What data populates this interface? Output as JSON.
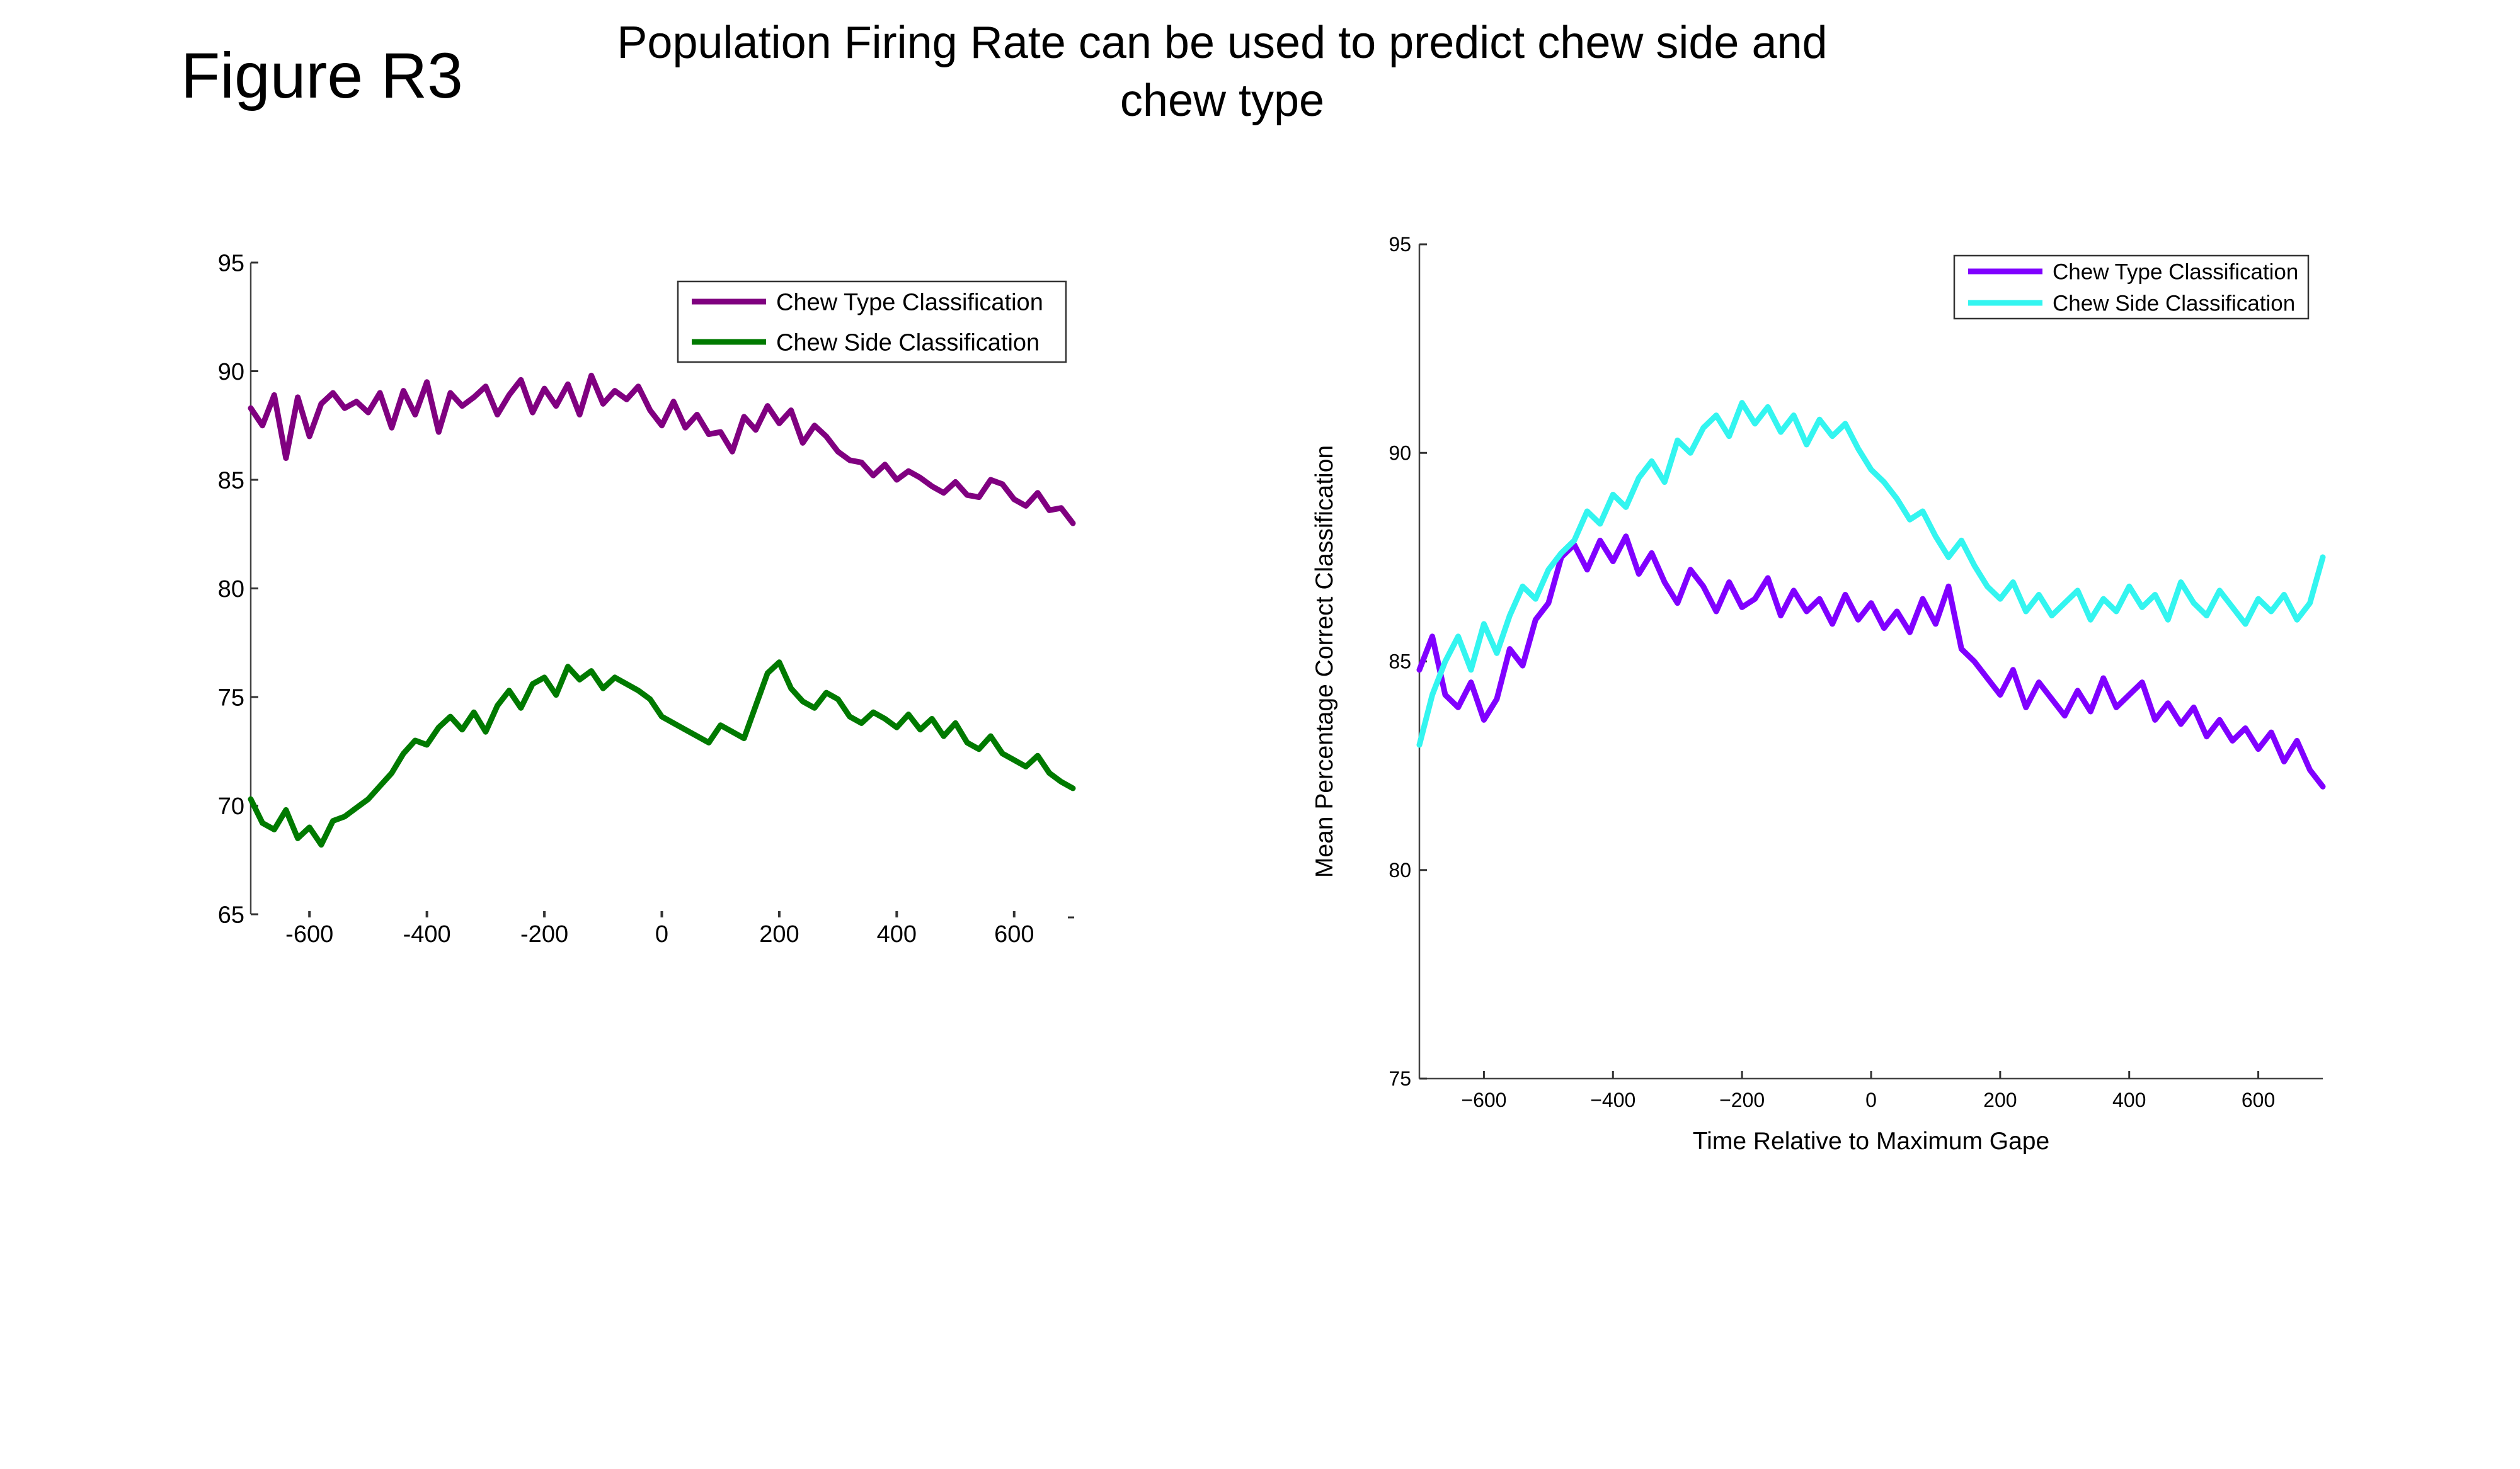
{
  "figure": {
    "label": "Figure R3",
    "title": "Population Firing Rate can be used to predict chew side and chew type"
  },
  "chart_data": [
    {
      "type": "line",
      "title": "",
      "xlabel": "",
      "ylabel": "",
      "xlim": [
        -700,
        700
      ],
      "ylim": [
        65,
        95
      ],
      "xticks": [
        -600,
        -400,
        -200,
        0,
        200,
        400,
        600
      ],
      "yticks": [
        65,
        70,
        75,
        80,
        85,
        90,
        95
      ],
      "legend_position": "top-right",
      "grid": false,
      "series": [
        {
          "name": "Chew Type Classification",
          "color": "#800080",
          "x": [
            -700,
            -680,
            -660,
            -640,
            -620,
            -600,
            -580,
            -560,
            -540,
            -520,
            -500,
            -480,
            -460,
            -440,
            -420,
            -400,
            -380,
            -360,
            -340,
            -320,
            -300,
            -280,
            -260,
            -240,
            -220,
            -200,
            -180,
            -160,
            -140,
            -120,
            -100,
            -80,
            -60,
            -40,
            -20,
            0,
            20,
            40,
            60,
            80,
            100,
            120,
            140,
            160,
            180,
            200,
            220,
            240,
            260,
            280,
            300,
            320,
            340,
            360,
            380,
            400,
            420,
            440,
            460,
            480,
            500,
            520,
            540,
            560,
            580,
            600,
            620,
            640,
            660,
            680,
            700
          ],
          "y": [
            88.3,
            87.5,
            88.9,
            86.0,
            88.8,
            87.0,
            88.5,
            89.0,
            88.3,
            88.6,
            88.1,
            89.0,
            87.4,
            89.1,
            88.0,
            89.5,
            87.2,
            89.0,
            88.4,
            88.8,
            89.3,
            88.0,
            88.9,
            89.6,
            88.1,
            89.2,
            88.4,
            89.4,
            88.0,
            89.8,
            88.5,
            89.1,
            88.7,
            89.3,
            88.2,
            87.5,
            88.6,
            87.4,
            88.0,
            87.1,
            87.2,
            86.3,
            87.9,
            87.3,
            88.4,
            87.6,
            88.2,
            86.7,
            87.5,
            87.0,
            86.3,
            85.9,
            85.8,
            85.2,
            85.7,
            85.0,
            85.4,
            85.1,
            84.7,
            84.4,
            84.9,
            84.3,
            84.2,
            85.0,
            84.8,
            84.1,
            83.8,
            84.4,
            83.6,
            83.7,
            83.0
          ]
        },
        {
          "name": "Chew Side Classification",
          "color": "#007a00",
          "x": [
            -700,
            -680,
            -660,
            -640,
            -620,
            -600,
            -580,
            -560,
            -540,
            -520,
            -500,
            -480,
            -460,
            -440,
            -420,
            -400,
            -380,
            -360,
            -340,
            -320,
            -300,
            -280,
            -260,
            -240,
            -220,
            -200,
            -180,
            -160,
            -140,
            -120,
            -100,
            -80,
            -60,
            -40,
            -20,
            0,
            20,
            40,
            60,
            80,
            100,
            120,
            140,
            160,
            180,
            200,
            220,
            240,
            260,
            280,
            300,
            320,
            340,
            360,
            380,
            400,
            420,
            440,
            460,
            480,
            500,
            520,
            540,
            560,
            580,
            600,
            620,
            640,
            660,
            680,
            700
          ],
          "y": [
            70.3,
            69.2,
            68.9,
            69.8,
            68.5,
            69.0,
            68.2,
            69.3,
            69.5,
            69.9,
            70.3,
            70.9,
            71.5,
            72.4,
            73.0,
            72.8,
            73.6,
            74.1,
            73.5,
            74.3,
            73.4,
            74.6,
            75.3,
            74.5,
            75.6,
            75.9,
            75.1,
            76.4,
            75.8,
            76.2,
            75.4,
            75.9,
            75.6,
            75.3,
            74.9,
            74.1,
            73.8,
            73.5,
            73.2,
            72.9,
            73.7,
            73.4,
            73.1,
            74.6,
            76.1,
            76.6,
            75.4,
            74.8,
            74.5,
            75.2,
            74.9,
            74.1,
            73.8,
            74.3,
            74.0,
            73.6,
            74.2,
            73.5,
            74.0,
            73.2,
            73.8,
            72.9,
            72.6,
            73.2,
            72.4,
            72.1,
            71.8,
            72.3,
            71.5,
            71.1,
            70.8
          ]
        }
      ]
    },
    {
      "type": "line",
      "title": "",
      "xlabel": "Time Relative to Maximum Gape",
      "ylabel": "Mean Percentage Correct Classification",
      "xlim": [
        -700,
        700
      ],
      "ylim": [
        75,
        95
      ],
      "xticks": [
        -600,
        -400,
        -200,
        0,
        200,
        400,
        600
      ],
      "xtick_labels": [
        "−600",
        "−400",
        "−200",
        "0",
        "200",
        "400",
        "600"
      ],
      "yticks": [
        75,
        80,
        85,
        90,
        95
      ],
      "legend_position": "top-right",
      "grid": false,
      "series": [
        {
          "name": "Chew Type Classification",
          "color": "#8000ff",
          "x": [
            -700,
            -680,
            -660,
            -640,
            -620,
            -600,
            -580,
            -560,
            -540,
            -520,
            -500,
            -480,
            -460,
            -440,
            -420,
            -400,
            -380,
            -360,
            -340,
            -320,
            -300,
            -280,
            -260,
            -240,
            -220,
            -200,
            -180,
            -160,
            -140,
            -120,
            -100,
            -80,
            -60,
            -40,
            -20,
            0,
            20,
            40,
            60,
            80,
            100,
            120,
            140,
            160,
            180,
            200,
            220,
            240,
            260,
            280,
            300,
            320,
            340,
            360,
            380,
            400,
            420,
            440,
            460,
            480,
            500,
            520,
            540,
            560,
            580,
            600,
            620,
            640,
            660,
            680,
            700
          ],
          "y": [
            84.8,
            85.6,
            84.2,
            83.9,
            84.5,
            83.6,
            84.1,
            85.3,
            84.9,
            86.0,
            86.4,
            87.5,
            87.8,
            87.2,
            87.9,
            87.4,
            88.0,
            87.1,
            87.6,
            86.9,
            86.4,
            87.2,
            86.8,
            86.2,
            86.9,
            86.3,
            86.5,
            87.0,
            86.1,
            86.7,
            86.2,
            86.5,
            85.9,
            86.6,
            86.0,
            86.4,
            85.8,
            86.2,
            85.7,
            86.5,
            85.9,
            86.8,
            85.3,
            85.0,
            84.6,
            84.2,
            84.8,
            83.9,
            84.5,
            84.1,
            83.7,
            84.3,
            83.8,
            84.6,
            83.9,
            84.2,
            84.5,
            83.6,
            84.0,
            83.5,
            83.9,
            83.2,
            83.6,
            83.1,
            83.4,
            82.9,
            83.3,
            82.6,
            83.1,
            82.4,
            82.0
          ]
        },
        {
          "name": "Chew Side Classification",
          "color": "#33f5f0",
          "x": [
            -700,
            -680,
            -660,
            -640,
            -620,
            -600,
            -580,
            -560,
            -540,
            -520,
            -500,
            -480,
            -460,
            -440,
            -420,
            -400,
            -380,
            -360,
            -340,
            -320,
            -300,
            -280,
            -260,
            -240,
            -220,
            -200,
            -180,
            -160,
            -140,
            -120,
            -100,
            -80,
            -60,
            -40,
            -20,
            0,
            20,
            40,
            60,
            80,
            100,
            120,
            140,
            160,
            180,
            200,
            220,
            240,
            260,
            280,
            300,
            320,
            340,
            360,
            380,
            400,
            420,
            440,
            460,
            480,
            500,
            520,
            540,
            560,
            580,
            600,
            620,
            640,
            660,
            680,
            700
          ],
          "y": [
            83.0,
            84.2,
            85.0,
            85.6,
            84.8,
            85.9,
            85.2,
            86.1,
            86.8,
            86.5,
            87.2,
            87.6,
            87.9,
            88.6,
            88.3,
            89.0,
            88.7,
            89.4,
            89.8,
            89.3,
            90.3,
            90.0,
            90.6,
            90.9,
            90.4,
            91.2,
            90.7,
            91.1,
            90.5,
            90.9,
            90.2,
            90.8,
            90.4,
            90.7,
            90.1,
            89.6,
            89.3,
            88.9,
            88.4,
            88.6,
            88.0,
            87.5,
            87.9,
            87.3,
            86.8,
            86.5,
            86.9,
            86.2,
            86.6,
            86.1,
            86.4,
            86.7,
            86.0,
            86.5,
            86.2,
            86.8,
            86.3,
            86.6,
            86.0,
            86.9,
            86.4,
            86.1,
            86.7,
            86.3,
            85.9,
            86.5,
            86.2,
            86.6,
            86.0,
            86.4,
            87.5
          ]
        }
      ]
    }
  ]
}
